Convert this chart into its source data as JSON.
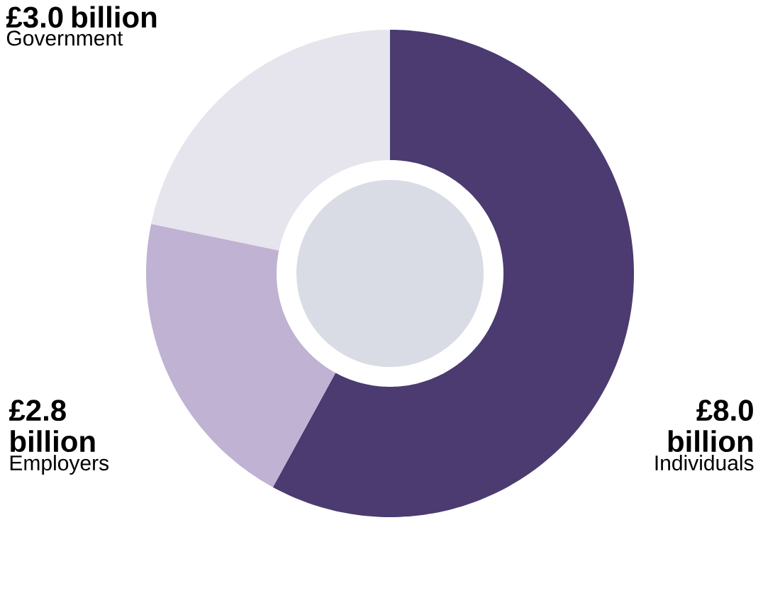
{
  "chart_data": {
    "type": "donut",
    "categories": [
      "Individuals",
      "Employers",
      "Government"
    ],
    "values": [
      8.0,
      2.8,
      3.0
    ],
    "colors": [
      "#4b3b70",
      "#bfb2d3",
      "#e6e4ec"
    ],
    "value_labels": [
      "£8.0 billion",
      "£2.8 billion",
      "£3.0 billion"
    ]
  }
}
